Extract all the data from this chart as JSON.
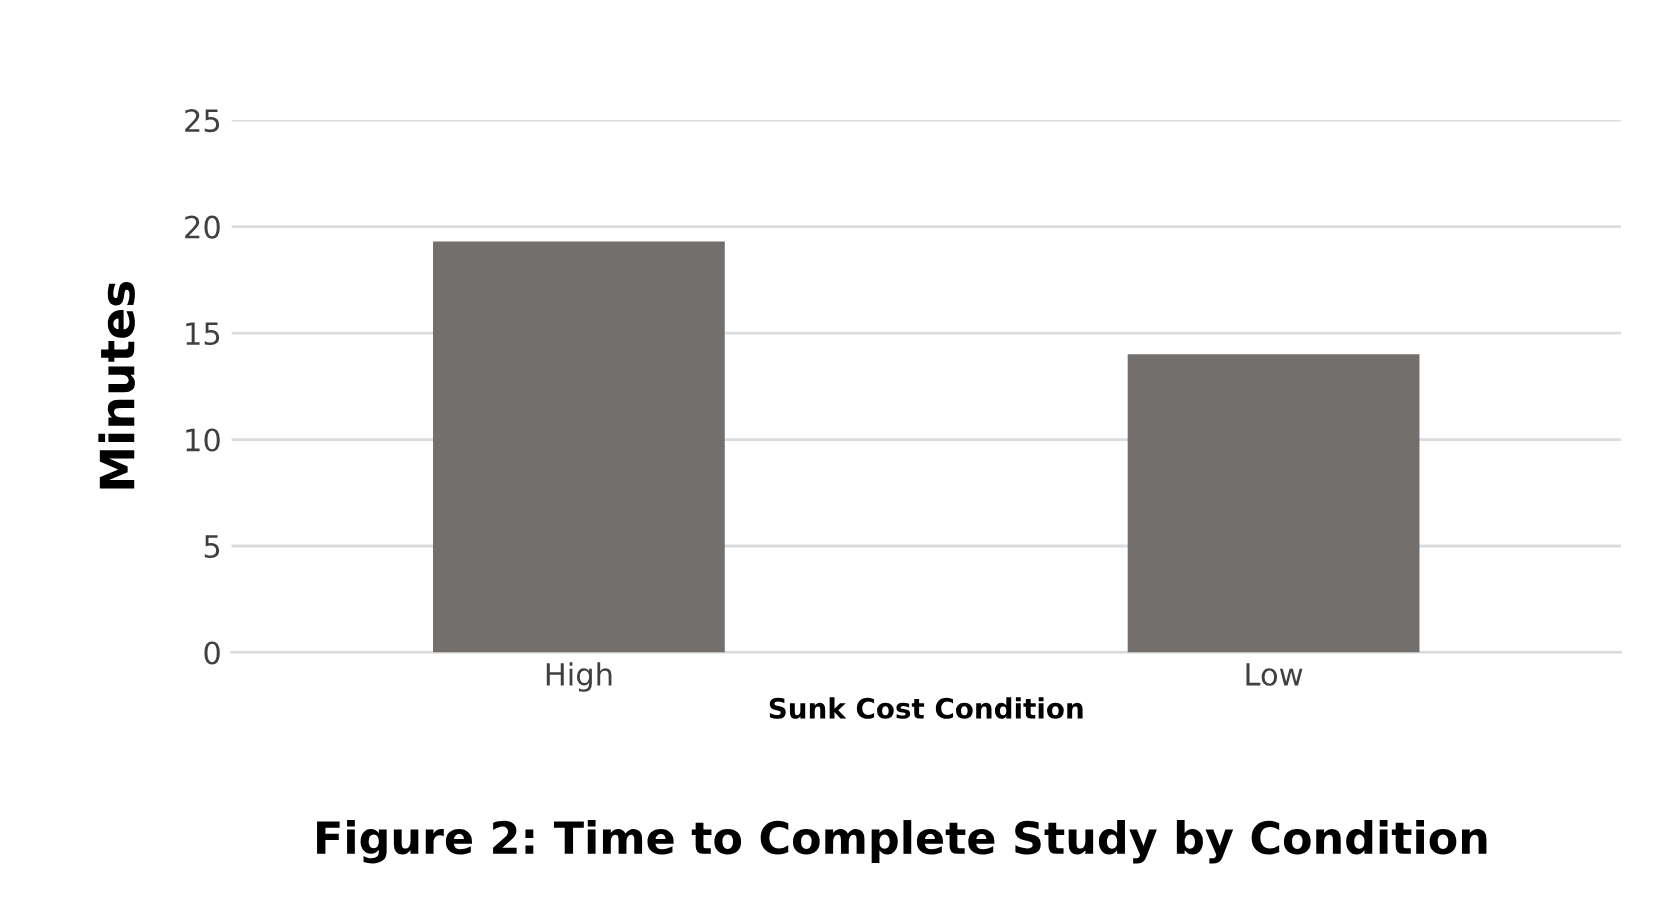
{
  "chart_data": {
    "type": "bar",
    "title": "Figure 2: Time to Complete Study by Condition",
    "xlabel": "Sunk Cost Condition",
    "ylabel": "Minutes",
    "categories": [
      "High",
      "Low"
    ],
    "values": [
      19.3,
      14.0
    ],
    "color": "#736f6c",
    "ylim": [
      0,
      25
    ],
    "yticks": [
      0,
      5,
      10,
      15,
      20,
      25
    ],
    "grid": "y"
  }
}
